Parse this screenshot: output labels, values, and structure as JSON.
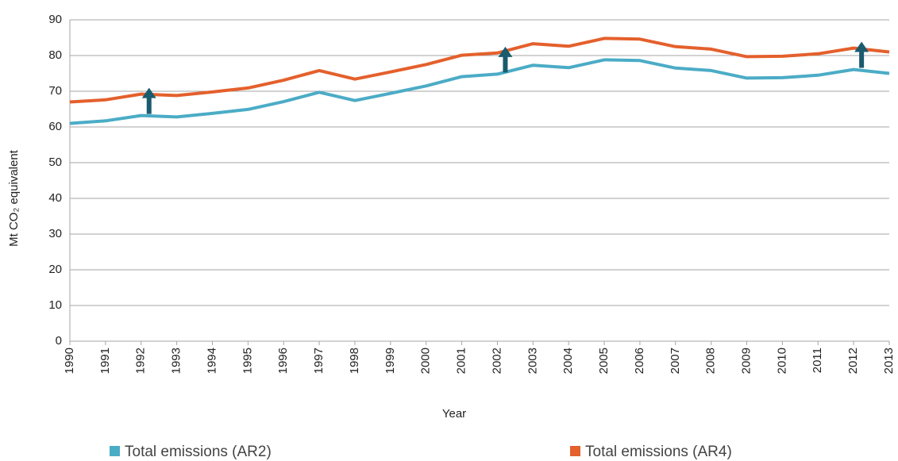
{
  "chart_data": {
    "type": "line",
    "y_axis_label": "Mt CO₂ equivalent",
    "x_axis_label": "Year",
    "categories": [
      "1990",
      "1991",
      "1992",
      "1993",
      "1994",
      "1995",
      "1996",
      "1997",
      "1998",
      "1999",
      "2000",
      "2001",
      "2002",
      "2003",
      "2004",
      "2005",
      "2006",
      "2007",
      "2008",
      "2009",
      "2010",
      "2011",
      "2012",
      "2013"
    ],
    "series": [
      {
        "name": "Total emissions (AR2)",
        "color": "#4bacc6",
        "values": [
          61.0,
          61.7,
          63.2,
          62.8,
          63.8,
          64.9,
          67.1,
          69.7,
          67.4,
          69.4,
          71.5,
          74.1,
          74.8,
          77.3,
          76.6,
          78.8,
          78.6,
          76.5,
          75.8,
          73.7,
          73.8,
          74.5,
          76.1,
          75.0
        ]
      },
      {
        "name": "Total emissions (AR4)",
        "color": "#e4602c",
        "values": [
          67.0,
          67.6,
          69.2,
          68.8,
          69.8,
          70.9,
          73.1,
          75.8,
          73.4,
          75.4,
          77.5,
          80.1,
          80.7,
          83.3,
          82.6,
          84.8,
          84.6,
          82.5,
          81.8,
          79.7,
          79.8,
          80.5,
          82.1,
          81.0
        ]
      }
    ],
    "ylim": [
      0,
      90
    ],
    "yticks": [
      0,
      10,
      20,
      30,
      40,
      50,
      60,
      70,
      80,
      90
    ],
    "grid": true,
    "legend": "bottom"
  }
}
